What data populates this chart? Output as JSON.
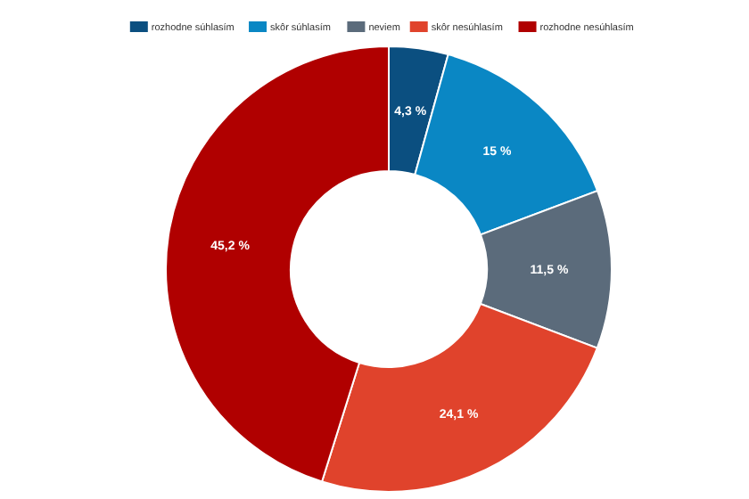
{
  "chart_data": {
    "type": "donut",
    "categories": [
      "rozhodne súhlasím",
      "skôr súhlasím",
      "neviem",
      "skôr nesúhlasím",
      "rozhodne nesúhlasím"
    ],
    "values": [
      4.3,
      15,
      11.5,
      24.1,
      45.2
    ],
    "value_labels": [
      "4,3 %",
      "15 %",
      "11,5 %",
      "24,1 %",
      "45,2 %"
    ],
    "colors": [
      "#0b4f80",
      "#0a87c4",
      "#5b6b7b",
      "#e0432c",
      "#b00000"
    ],
    "legend": "top"
  }
}
